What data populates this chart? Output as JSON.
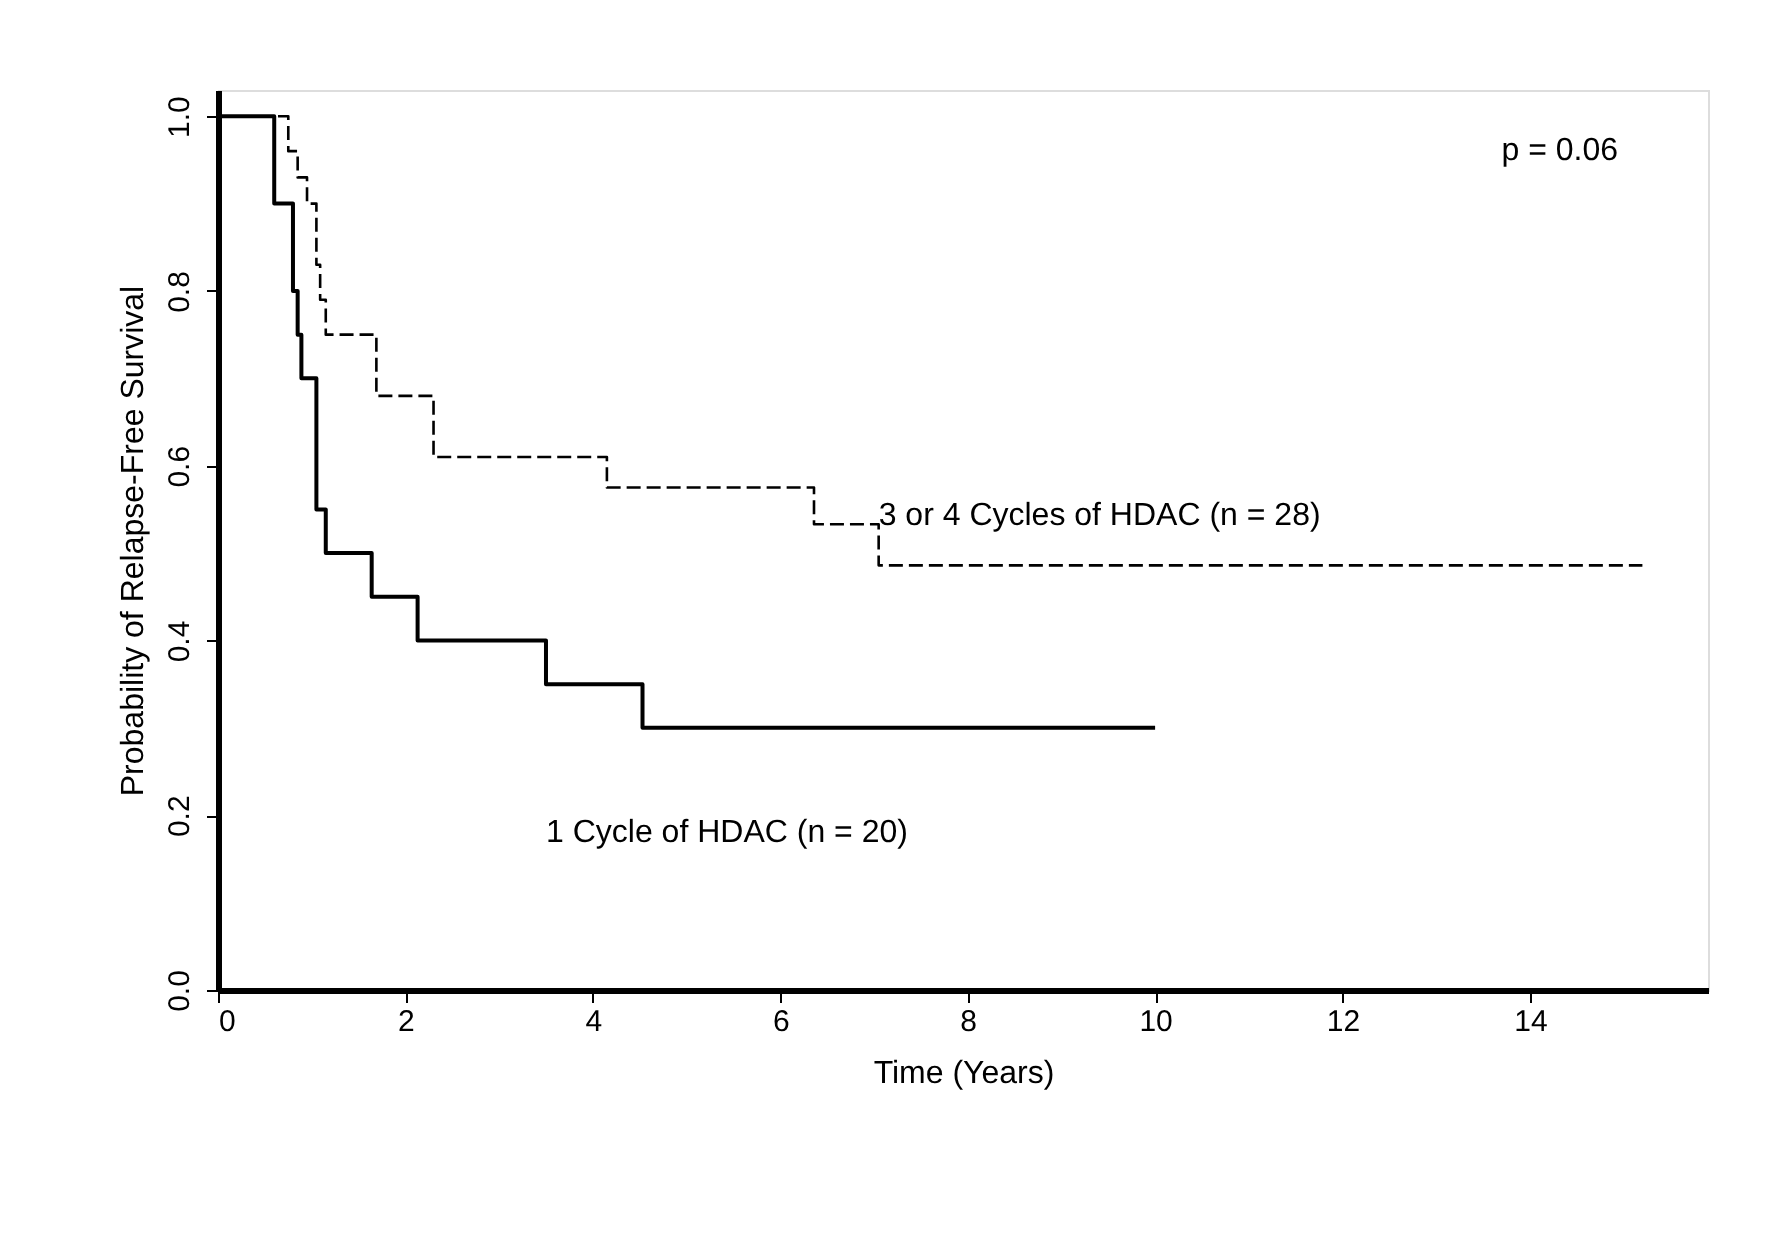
{
  "chart_data": {
    "type": "step",
    "xlabel": "Time (Years)",
    "ylabel": "Probability of Relapse-Free Survival",
    "xlim": [
      0,
      15.9
    ],
    "xticks": [
      0,
      2,
      4,
      6,
      8,
      10,
      12,
      14
    ],
    "ylim": [
      0,
      1.03
    ],
    "yticks": [
      {
        "value": 0,
        "label": "0.0"
      },
      0.2,
      0.4,
      0.6,
      0.8,
      {
        "value": 1,
        "label": "1.0"
      }
    ],
    "grid": false,
    "marker": "none",
    "annotations": [
      "p = 0.06"
    ],
    "series": [
      {
        "name": "1 Cycle of HDAC (n = 20)",
        "color": "#000000",
        "line_style": "solid",
        "x": [
          0,
          0.6,
          0.8,
          0.85,
          0.89,
          1.05,
          1.15,
          1.64,
          2.13,
          3.5,
          4.53,
          10
        ],
        "values": [
          1.0,
          0.9,
          0.8,
          0.75,
          0.7,
          0.55,
          0.5,
          0.45,
          0.4,
          0.35,
          0.3,
          0.3
        ]
      },
      {
        "name": "3 or 4 Cycles of HDAC (n = 28)",
        "color": "#000000",
        "line_style": "dashed",
        "x": [
          0,
          0.75,
          0.85,
          0.95,
          1.05,
          1.09,
          1.15,
          1.69,
          2.3,
          4.15,
          6.36,
          7.05,
          15.2
        ],
        "values": [
          1.0,
          0.96,
          0.93,
          0.9,
          0.83,
          0.79,
          0.75,
          0.68,
          0.61,
          0.575,
          0.533,
          0.486,
          0.486
        ]
      }
    ]
  }
}
